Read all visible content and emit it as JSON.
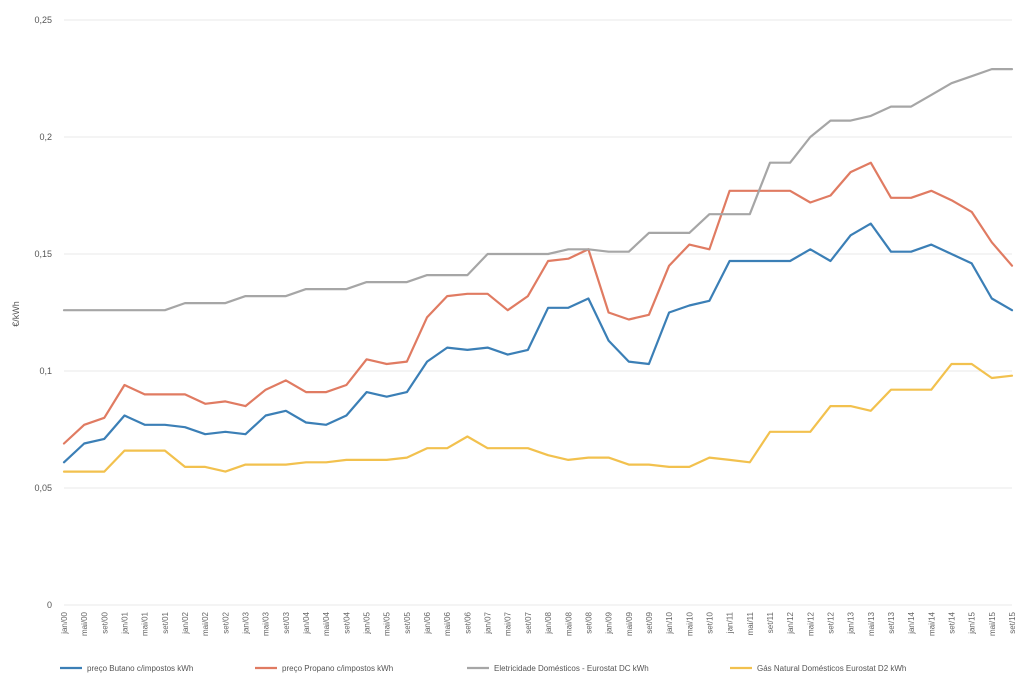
{
  "chart_data": {
    "type": "line",
    "title": "",
    "xlabel": "",
    "ylabel": "€/kWh",
    "ylim": [
      0,
      0.25
    ],
    "yticks": [
      "0",
      "0,05",
      "0,1",
      "0,15",
      "0,2",
      "0,25"
    ],
    "grid": true,
    "legend_position": "bottom",
    "x": [
      "jan/00",
      "mai/00",
      "set/00",
      "jan/01",
      "mai/01",
      "set/01",
      "jan/02",
      "mai/02",
      "set/02",
      "jan/03",
      "mai/03",
      "set/03",
      "jan/04",
      "mai/04",
      "set/04",
      "jan/05",
      "mai/05",
      "set/05",
      "jan/06",
      "mai/06",
      "set/06",
      "jan/07",
      "mai/07",
      "set/07",
      "jan/08",
      "mai/08",
      "set/08",
      "jan/09",
      "mai/09",
      "set/09",
      "jan/10",
      "mai/10",
      "set/10",
      "jan/11",
      "mai/11",
      "set/11",
      "jan/12",
      "mai/12",
      "set/12",
      "jan/13",
      "mai/13",
      "set/13",
      "jan/14",
      "mai/14",
      "set/14",
      "jan/15",
      "mai/15",
      "set/15"
    ],
    "series": [
      {
        "name": "preço Butano c/impostos kWh",
        "color": "#3b7fb6",
        "values": [
          0.061,
          0.069,
          0.071,
          0.081,
          0.077,
          0.077,
          0.076,
          0.073,
          0.074,
          0.073,
          0.081,
          0.083,
          0.078,
          0.077,
          0.081,
          0.091,
          0.089,
          0.091,
          0.104,
          0.11,
          0.109,
          0.11,
          0.107,
          0.109,
          0.127,
          0.127,
          0.131,
          0.113,
          0.104,
          0.103,
          0.125,
          0.128,
          0.13,
          0.147,
          0.147,
          0.147,
          0.147,
          0.152,
          0.147,
          0.158,
          0.163,
          0.151,
          0.151,
          0.154,
          0.15,
          0.146,
          0.131,
          0.126
        ]
      },
      {
        "name": "preço Propano c/impostos kWh",
        "color": "#e07b62",
        "values": [
          0.069,
          0.077,
          0.08,
          0.094,
          0.09,
          0.09,
          0.09,
          0.086,
          0.087,
          0.085,
          0.092,
          0.096,
          0.091,
          0.091,
          0.094,
          0.105,
          0.103,
          0.104,
          0.123,
          0.132,
          0.133,
          0.133,
          0.126,
          0.132,
          0.147,
          0.148,
          0.152,
          0.125,
          0.122,
          0.124,
          0.145,
          0.154,
          0.152,
          0.177,
          0.177,
          0.177,
          0.177,
          0.172,
          0.175,
          0.185,
          0.189,
          0.174,
          0.174,
          0.177,
          0.173,
          0.168,
          0.155,
          0.145
        ]
      },
      {
        "name": "Eletricidade Domésticos - Eurostat DC kWh",
        "color": "#a6a6a6",
        "values": [
          0.126,
          0.126,
          0.126,
          0.126,
          0.126,
          0.126,
          0.129,
          0.129,
          0.129,
          0.132,
          0.132,
          0.132,
          0.135,
          0.135,
          0.135,
          0.138,
          0.138,
          0.138,
          0.141,
          0.141,
          0.141,
          0.15,
          0.15,
          0.15,
          0.15,
          0.152,
          0.152,
          0.151,
          0.151,
          0.159,
          0.159,
          0.159,
          0.167,
          0.167,
          0.167,
          0.189,
          0.189,
          0.2,
          0.207,
          0.207,
          0.209,
          0.213,
          0.213,
          0.218,
          0.223,
          0.226,
          0.229,
          0.229
        ]
      },
      {
        "name": "Gás Natural Domésticos Eurostat D2 kWh",
        "color": "#f2c14e",
        "values": [
          0.057,
          0.057,
          0.057,
          0.066,
          0.066,
          0.066,
          0.059,
          0.059,
          0.057,
          0.06,
          0.06,
          0.06,
          0.061,
          0.061,
          0.062,
          0.062,
          0.062,
          0.063,
          0.067,
          0.067,
          0.072,
          0.067,
          0.067,
          0.067,
          0.064,
          0.062,
          0.063,
          0.063,
          0.06,
          0.06,
          0.059,
          0.059,
          0.063,
          0.062,
          0.061,
          0.074,
          0.074,
          0.074,
          0.085,
          0.085,
          0.083,
          0.092,
          0.092,
          0.092,
          0.103,
          0.103,
          0.097,
          0.098
        ]
      }
    ]
  }
}
